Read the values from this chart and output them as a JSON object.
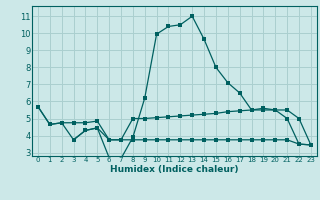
{
  "title": "",
  "xlabel": "Humidex (Indice chaleur)",
  "bg_color": "#cce8e8",
  "grid_color": "#aacfcf",
  "line_color": "#006060",
  "xlim": [
    -0.5,
    23.5
  ],
  "ylim": [
    2.8,
    11.6
  ],
  "xticks": [
    0,
    1,
    2,
    3,
    4,
    5,
    6,
    7,
    8,
    9,
    10,
    11,
    12,
    13,
    14,
    15,
    16,
    17,
    18,
    19,
    20,
    21,
    22,
    23
  ],
  "yticks": [
    3,
    4,
    5,
    6,
    7,
    8,
    9,
    10,
    11
  ],
  "line1_x": [
    0,
    1,
    2,
    3,
    4,
    5,
    6,
    7,
    8,
    9,
    10,
    11,
    12,
    13,
    14,
    15,
    16,
    17,
    18,
    19,
    20,
    21,
    22,
    23
  ],
  "line1_y": [
    5.7,
    4.65,
    4.75,
    3.75,
    4.3,
    4.45,
    2.7,
    2.65,
    3.9,
    6.2,
    9.95,
    10.4,
    10.5,
    11.0,
    9.65,
    8.0,
    7.1,
    6.5,
    5.5,
    5.6,
    5.5,
    5.0,
    3.5,
    3.45
  ],
  "line2_x": [
    0,
    1,
    2,
    3,
    4,
    5,
    6,
    7,
    8,
    9,
    10,
    11,
    12,
    13,
    14,
    15,
    16,
    17,
    18,
    19,
    20,
    21,
    22,
    23
  ],
  "line2_y": [
    5.7,
    4.65,
    4.75,
    4.75,
    4.75,
    4.85,
    3.75,
    3.75,
    5.0,
    5.0,
    5.05,
    5.1,
    5.15,
    5.2,
    5.25,
    5.3,
    5.4,
    5.45,
    5.5,
    5.5,
    5.5,
    5.5,
    5.0,
    3.45
  ],
  "line3_x": [
    3,
    4,
    5,
    6,
    7,
    8,
    9,
    10,
    11,
    12,
    13,
    14,
    15,
    16,
    17,
    18,
    19,
    20,
    21,
    22,
    23
  ],
  "line3_y": [
    3.75,
    4.3,
    4.45,
    3.75,
    3.75,
    3.75,
    3.75,
    3.75,
    3.75,
    3.75,
    3.75,
    3.75,
    3.75,
    3.75,
    3.75,
    3.75,
    3.75,
    3.75,
    3.75,
    3.5,
    3.45
  ]
}
